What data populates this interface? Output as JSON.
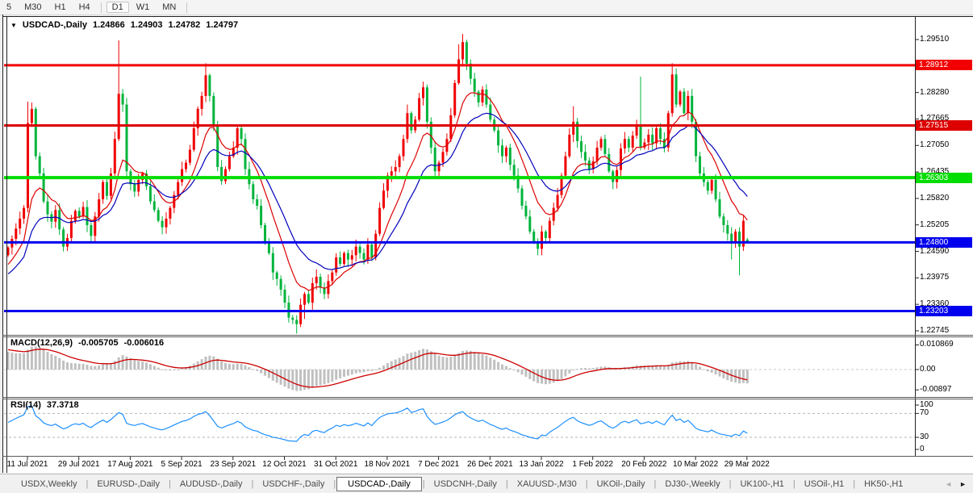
{
  "toolbar": {
    "timeframes": [
      "5",
      "M30",
      "H1",
      "H4",
      "D1",
      "W1",
      "MN"
    ],
    "active": "D1"
  },
  "chart": {
    "dropdown_icon": "▼",
    "symbol_label": "USDCAD-,Daily",
    "quote_open": "1.24866",
    "quote_high": "1.24903",
    "quote_low": "1.24782",
    "quote_close": "1.24797"
  },
  "indicators": {
    "macd": {
      "label": "MACD(12,26,9)",
      "value": "-0.005705",
      "signal_value": "-0.006016",
      "axis_ticks": [
        "0.010869",
        "0.00",
        "-0.00897"
      ],
      "histogram_color": "#c0c0c0",
      "signal_color": "#cc0000"
    },
    "rsi": {
      "label": "RSI(14)",
      "value": "37.3718",
      "axis_ticks": [
        "100",
        "70",
        "30",
        "0"
      ],
      "levels": [
        70,
        30
      ],
      "line_color": "#1e90ff"
    }
  },
  "chart_data": {
    "type": "candlestick",
    "symbol": "USDCAD-",
    "timeframe": "Daily",
    "up_color": "#f00000",
    "down_color": "#00b43c",
    "ylim": [
      1.2265,
      1.2987
    ],
    "first_open": 1.245,
    "closes": [
      1.2468,
      1.2488,
      1.2512,
      1.2535,
      1.256,
      1.2757,
      1.279,
      1.268,
      1.264,
      1.2575,
      1.2545,
      1.2528,
      1.2555,
      1.251,
      1.247,
      1.249,
      1.253,
      1.2553,
      1.254,
      1.2562,
      1.252,
      1.2495,
      1.254,
      1.258,
      1.262,
      1.2588,
      1.264,
      1.272,
      1.2825,
      1.28,
      1.2645,
      1.2615,
      1.2598,
      1.2625,
      1.264,
      1.261,
      1.2575,
      1.2555,
      1.253,
      1.2515,
      1.2535,
      1.256,
      1.259,
      1.262,
      1.265,
      1.2665,
      1.2695,
      1.2745,
      1.279,
      1.282,
      1.2868,
      1.282,
      1.275,
      1.2655,
      1.2622,
      1.265,
      1.268,
      1.27,
      1.2745,
      1.272,
      1.265,
      1.2615,
      1.258,
      1.2565,
      1.252,
      1.248,
      1.2455,
      1.241,
      1.2395,
      1.237,
      1.234,
      1.2305,
      1.23,
      1.229,
      1.2335,
      1.236,
      1.234,
      1.2385,
      1.24,
      1.2375,
      1.236,
      1.239,
      1.241,
      1.2445,
      1.243,
      1.2455,
      1.244,
      1.245,
      1.247,
      1.2455,
      1.244,
      1.2475,
      1.2445,
      1.25,
      1.256,
      1.26,
      1.2635,
      1.2645,
      1.2655,
      1.268,
      1.272,
      1.278,
      1.274,
      1.2765,
      1.2815,
      1.284,
      1.276,
      1.27,
      1.2645,
      1.2665,
      1.269,
      1.272,
      1.2775,
      1.285,
      1.2905,
      1.2945,
      1.2895,
      1.286,
      1.283,
      1.2805,
      1.2835,
      1.28,
      1.2765,
      1.274,
      1.2705,
      1.268,
      1.27,
      1.266,
      1.2635,
      1.2605,
      1.2565,
      1.254,
      1.2505,
      1.248,
      1.2465,
      1.2505,
      1.249,
      1.253,
      1.256,
      1.259,
      1.2635,
      1.268,
      1.273,
      1.276,
      1.2715,
      1.269,
      1.267,
      1.265,
      1.2668,
      1.27,
      1.272,
      1.2685,
      1.2645,
      1.262,
      1.2648,
      1.2698,
      1.272,
      1.27,
      1.2728,
      1.275,
      1.27,
      1.2712,
      1.273,
      1.271,
      1.2745,
      1.272,
      1.27,
      1.278,
      1.287,
      1.28,
      1.283,
      1.278,
      1.282,
      1.276,
      1.268,
      1.264,
      1.262,
      1.26,
      1.2625,
      1.258,
      1.254,
      1.252,
      1.25,
      1.248,
      1.2505,
      1.247,
      1.253,
      1.24797
    ],
    "wick_overrides": {
      "5": {
        "h": 1.2807
      },
      "28": {
        "h": 1.2949
      },
      "50": {
        "h": 1.2896
      },
      "73": {
        "l": 1.2268
      },
      "75": {
        "l": 1.2302
      },
      "101": {
        "h": 1.28
      },
      "105": {
        "h": 1.2853
      },
      "114": {
        "h": 1.294
      },
      "115": {
        "h": 1.2964
      },
      "134": {
        "l": 1.245
      },
      "143": {
        "h": 1.2796
      },
      "160": {
        "h": 1.2865
      },
      "168": {
        "h": 1.2896
      },
      "183": {
        "l": 1.244
      },
      "185": {
        "l": 1.2403
      },
      "187": {
        "o": 1.24866,
        "h": 1.24903,
        "l": 1.24782
      }
    },
    "overlays": [
      {
        "name": "fast MA",
        "period": 10,
        "color": "#dd0000"
      },
      {
        "name": "slow MA",
        "period": 20,
        "color": "#0000bb"
      }
    ],
    "horizontal_lines": [
      {
        "price": 1.28912,
        "label": "1.28912",
        "color": "#f20000",
        "width": 3
      },
      {
        "price": 1.27515,
        "label": "1.27515",
        "color": "#dd0000",
        "width": 3
      },
      {
        "price": 1.26303,
        "label": "1.26303",
        "color": "#00dd00",
        "width": 4
      },
      {
        "price": 1.248,
        "label": "1.24800",
        "color": "#0000ee",
        "width": 3
      },
      {
        "price": 1.23203,
        "label": "1.23203",
        "color": "#0000ee",
        "width": 3
      }
    ],
    "price_ticks": [
      "1.29510",
      "1.28280",
      "1.27665",
      "1.27050",
      "1.26435",
      "1.25820",
      "1.25205",
      "1.24590",
      "1.23975",
      "1.23360",
      "1.22745"
    ],
    "time_ticks": [
      "11 Jul 2021",
      "29 Jul 2021",
      "17 Aug 2021",
      "5 Sep 2021",
      "23 Sep 2021",
      "12 Oct 2021",
      "31 Oct 2021",
      "18 Nov 2021",
      "7 Dec 2021",
      "26 Dec 2021",
      "13 Jan 2022",
      "1 Feb 2022",
      "20 Feb 2022",
      "10 Mar 2022",
      "29 Mar 2022"
    ]
  },
  "tabs": {
    "items": [
      "USDX,Weekly",
      "EURUSD-,Daily",
      "AUDUSD-,Daily",
      "USDCHF-,Daily",
      "USDCAD-,Daily",
      "USDCNH-,Daily",
      "XAUUSD-,M30",
      "UKOil-,Daily",
      "DJ30-,Weekly",
      "UK100-,H1",
      "USOil-,H1",
      "HK50-,H1"
    ],
    "active": "USDCAD-,Daily",
    "scroll_left_icon": "◄",
    "scroll_right_icon": "►"
  }
}
